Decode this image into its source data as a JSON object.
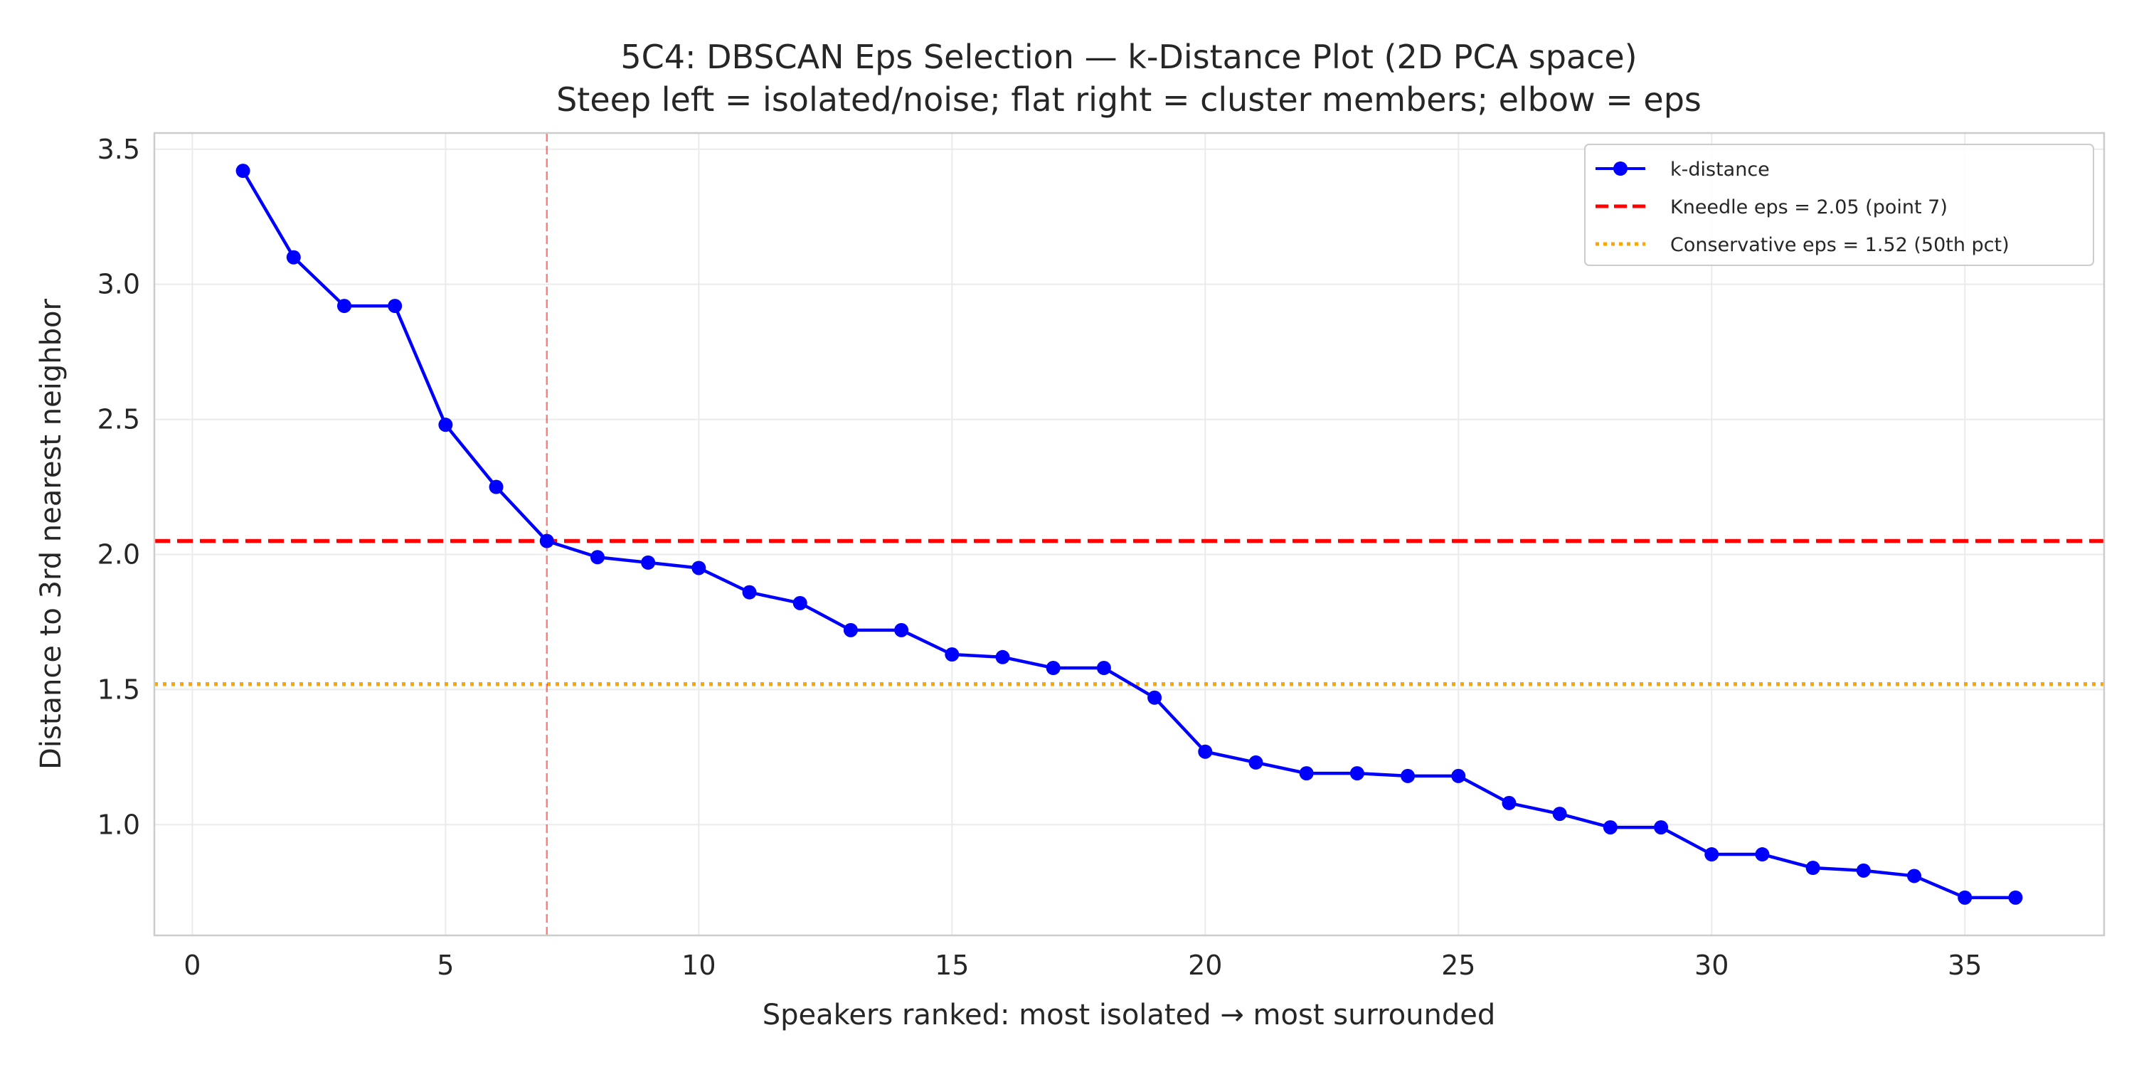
{
  "chart_data": {
    "type": "line",
    "title": "5C4: DBSCAN Eps Selection — k-Distance Plot (2D PCA space)",
    "subtitle": "Steep left = isolated/noise; flat right = cluster members; elbow = eps",
    "xlabel": "Speakers ranked: most isolated → most surrounded",
    "ylabel": "Distance to 3rd nearest neighbor",
    "xlim": [
      -0.75,
      37.75
    ],
    "ylim": [
      0.59,
      3.56
    ],
    "xticks": [
      0,
      5,
      10,
      15,
      20,
      25,
      30,
      35
    ],
    "yticks": [
      1.0,
      1.5,
      2.0,
      2.5,
      3.0,
      3.5
    ],
    "ytick_labels": [
      "1.0",
      "1.5",
      "2.0",
      "2.5",
      "3.0",
      "3.5"
    ],
    "grid": true,
    "legend_position": "top-right",
    "series": [
      {
        "name": "k-distance",
        "color": "#0000ff",
        "marker": "circle",
        "x": [
          1,
          2,
          3,
          4,
          5,
          6,
          7,
          8,
          9,
          10,
          11,
          12,
          13,
          14,
          15,
          16,
          17,
          18,
          19,
          20,
          21,
          22,
          23,
          24,
          25,
          26,
          27,
          28,
          29,
          30,
          31,
          32,
          33,
          34,
          35,
          36
        ],
        "y": [
          3.42,
          3.1,
          2.92,
          2.92,
          2.48,
          2.25,
          2.05,
          1.99,
          1.97,
          1.95,
          1.86,
          1.82,
          1.72,
          1.72,
          1.63,
          1.62,
          1.58,
          1.58,
          1.47,
          1.27,
          1.23,
          1.19,
          1.19,
          1.18,
          1.18,
          1.08,
          1.04,
          0.99,
          0.99,
          0.89,
          0.89,
          0.84,
          0.83,
          0.81,
          0.73,
          0.73
        ]
      }
    ],
    "reference_lines": [
      {
        "name": "Kneedle eps = 2.05 (point 7)",
        "orientation": "horizontal",
        "value": 2.05,
        "color": "#ff0000",
        "style": "dashed"
      },
      {
        "name": "Conservative eps = 1.52 (50th pct)",
        "orientation": "horizontal",
        "value": 1.52,
        "color": "#ffa500",
        "style": "dotted"
      },
      {
        "orientation": "vertical",
        "value": 7,
        "color": "#ff0000",
        "style": "dashed",
        "alpha": 0.5
      }
    ]
  }
}
